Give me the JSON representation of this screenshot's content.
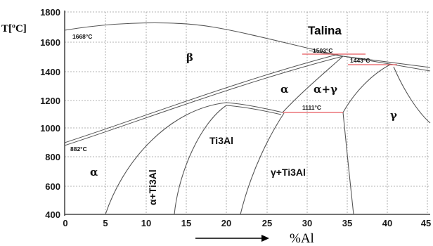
{
  "diagram": {
    "title": "Talina",
    "y_axis_label": "T[ºC]",
    "x_axis_label": "%Al",
    "y_ticks": [
      "1800",
      "1600",
      "1400",
      "1200",
      "1000",
      "800",
      "600",
      "400"
    ],
    "x_ticks": [
      "0",
      "5",
      "10",
      "15",
      "20",
      "25",
      "30",
      "35",
      "40",
      "45"
    ],
    "phases": {
      "beta": "β",
      "alpha_hi": "α",
      "alpha_gamma": "α+γ",
      "gamma": "γ",
      "ti3al": "Ti3Al",
      "alpha_low": "α",
      "alpha_ti3al": "α+Ti3Al",
      "gamma_ti3al": "γ+Ti3Al"
    },
    "temperatures": {
      "t1668": "1668°C",
      "t1503": "1503°C",
      "t1443": "1443°C",
      "t1111": "1111°C",
      "t882": "882°C"
    },
    "colors": {
      "phase_line": "#555555",
      "isotherm": "#e8595e",
      "grid": "#9a9a9a"
    }
  }
}
